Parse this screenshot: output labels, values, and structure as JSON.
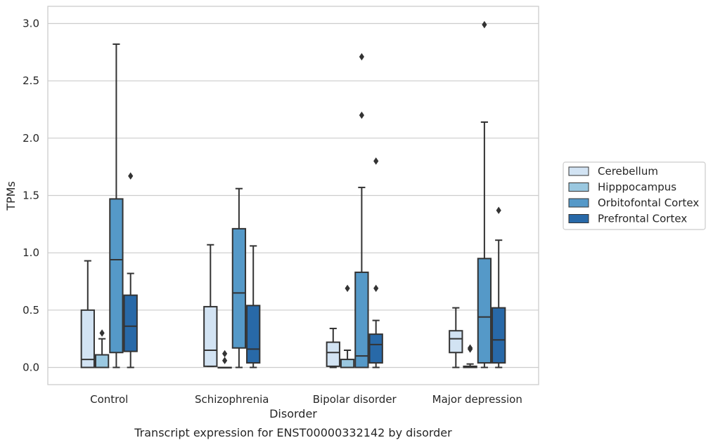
{
  "chart_data": {
    "type": "box",
    "title": "",
    "caption": "Transcript expression for ENST00000332142 by disorder",
    "xlabel": "Disorder",
    "ylabel": "TPMs",
    "ylim": [
      -0.15,
      3.15
    ],
    "yticks": [
      0.0,
      0.5,
      1.0,
      1.5,
      2.0,
      2.5,
      3.0
    ],
    "ytick_labels": [
      "0.0",
      "0.5",
      "1.0",
      "1.5",
      "2.0",
      "2.5",
      "3.0"
    ],
    "grid": "horizontal",
    "legend_position": "right",
    "categories": [
      "Control",
      "Schizophrenia",
      "Bipolar disorder",
      "Major depression"
    ],
    "series": [
      {
        "name": "Cerebellum",
        "color": "#d2e3f3",
        "boxes": [
          {
            "whisker_low": 0.0,
            "q1": 0.0,
            "median": 0.07,
            "q3": 0.5,
            "whisker_high": 0.93,
            "outliers": []
          },
          {
            "whisker_low": 0.01,
            "q1": 0.01,
            "median": 0.15,
            "q3": 0.53,
            "whisker_high": 1.07,
            "outliers": []
          },
          {
            "whisker_low": 0.0,
            "q1": 0.01,
            "median": 0.13,
            "q3": 0.22,
            "whisker_high": 0.34,
            "outliers": []
          },
          {
            "whisker_low": 0.0,
            "q1": 0.13,
            "median": 0.25,
            "q3": 0.32,
            "whisker_high": 0.52,
            "outliers": []
          }
        ]
      },
      {
        "name": "Hipppocampus",
        "color": "#9ac8e0",
        "boxes": [
          {
            "whisker_low": 0.0,
            "q1": 0.0,
            "median": 0.0,
            "q3": 0.11,
            "whisker_high": 0.25,
            "outliers": [
              0.3
            ]
          },
          {
            "whisker_low": 0.0,
            "q1": 0.0,
            "median": 0.0,
            "q3": 0.0,
            "whisker_high": 0.0,
            "outliers": [
              0.06,
              0.12
            ]
          },
          {
            "whisker_low": 0.0,
            "q1": 0.0,
            "median": 0.0,
            "q3": 0.07,
            "whisker_high": 0.15,
            "outliers": [
              0.69
            ]
          },
          {
            "whisker_low": 0.0,
            "q1": 0.0,
            "median": 0.0,
            "q3": 0.01,
            "whisker_high": 0.03,
            "outliers": [
              0.16,
              0.17
            ]
          }
        ]
      },
      {
        "name": "Orbitofontal Cortex",
        "color": "#5599c8",
        "boxes": [
          {
            "whisker_low": 0.0,
            "q1": 0.13,
            "median": 0.94,
            "q3": 1.47,
            "whisker_high": 2.82,
            "outliers": []
          },
          {
            "whisker_low": 0.0,
            "q1": 0.17,
            "median": 0.65,
            "q3": 1.21,
            "whisker_high": 1.56,
            "outliers": []
          },
          {
            "whisker_low": 0.0,
            "q1": 0.0,
            "median": 0.1,
            "q3": 0.83,
            "whisker_high": 1.57,
            "outliers": [
              2.2,
              2.71
            ]
          },
          {
            "whisker_low": 0.0,
            "q1": 0.04,
            "median": 0.44,
            "q3": 0.95,
            "whisker_high": 2.14,
            "outliers": [
              2.99
            ]
          }
        ]
      },
      {
        "name": "Prefrontal Cortex",
        "color": "#2869a8",
        "boxes": [
          {
            "whisker_low": 0.0,
            "q1": 0.14,
            "median": 0.36,
            "q3": 0.63,
            "whisker_high": 0.82,
            "outliers": [
              1.67
            ]
          },
          {
            "whisker_low": 0.0,
            "q1": 0.04,
            "median": 0.16,
            "q3": 0.54,
            "whisker_high": 1.06,
            "outliers": []
          },
          {
            "whisker_low": 0.0,
            "q1": 0.04,
            "median": 0.2,
            "q3": 0.29,
            "whisker_high": 0.41,
            "outliers": [
              0.69,
              1.8
            ]
          },
          {
            "whisker_low": 0.0,
            "q1": 0.04,
            "median": 0.24,
            "q3": 0.52,
            "whisker_high": 1.11,
            "outliers": [
              1.37
            ]
          }
        ]
      }
    ]
  }
}
